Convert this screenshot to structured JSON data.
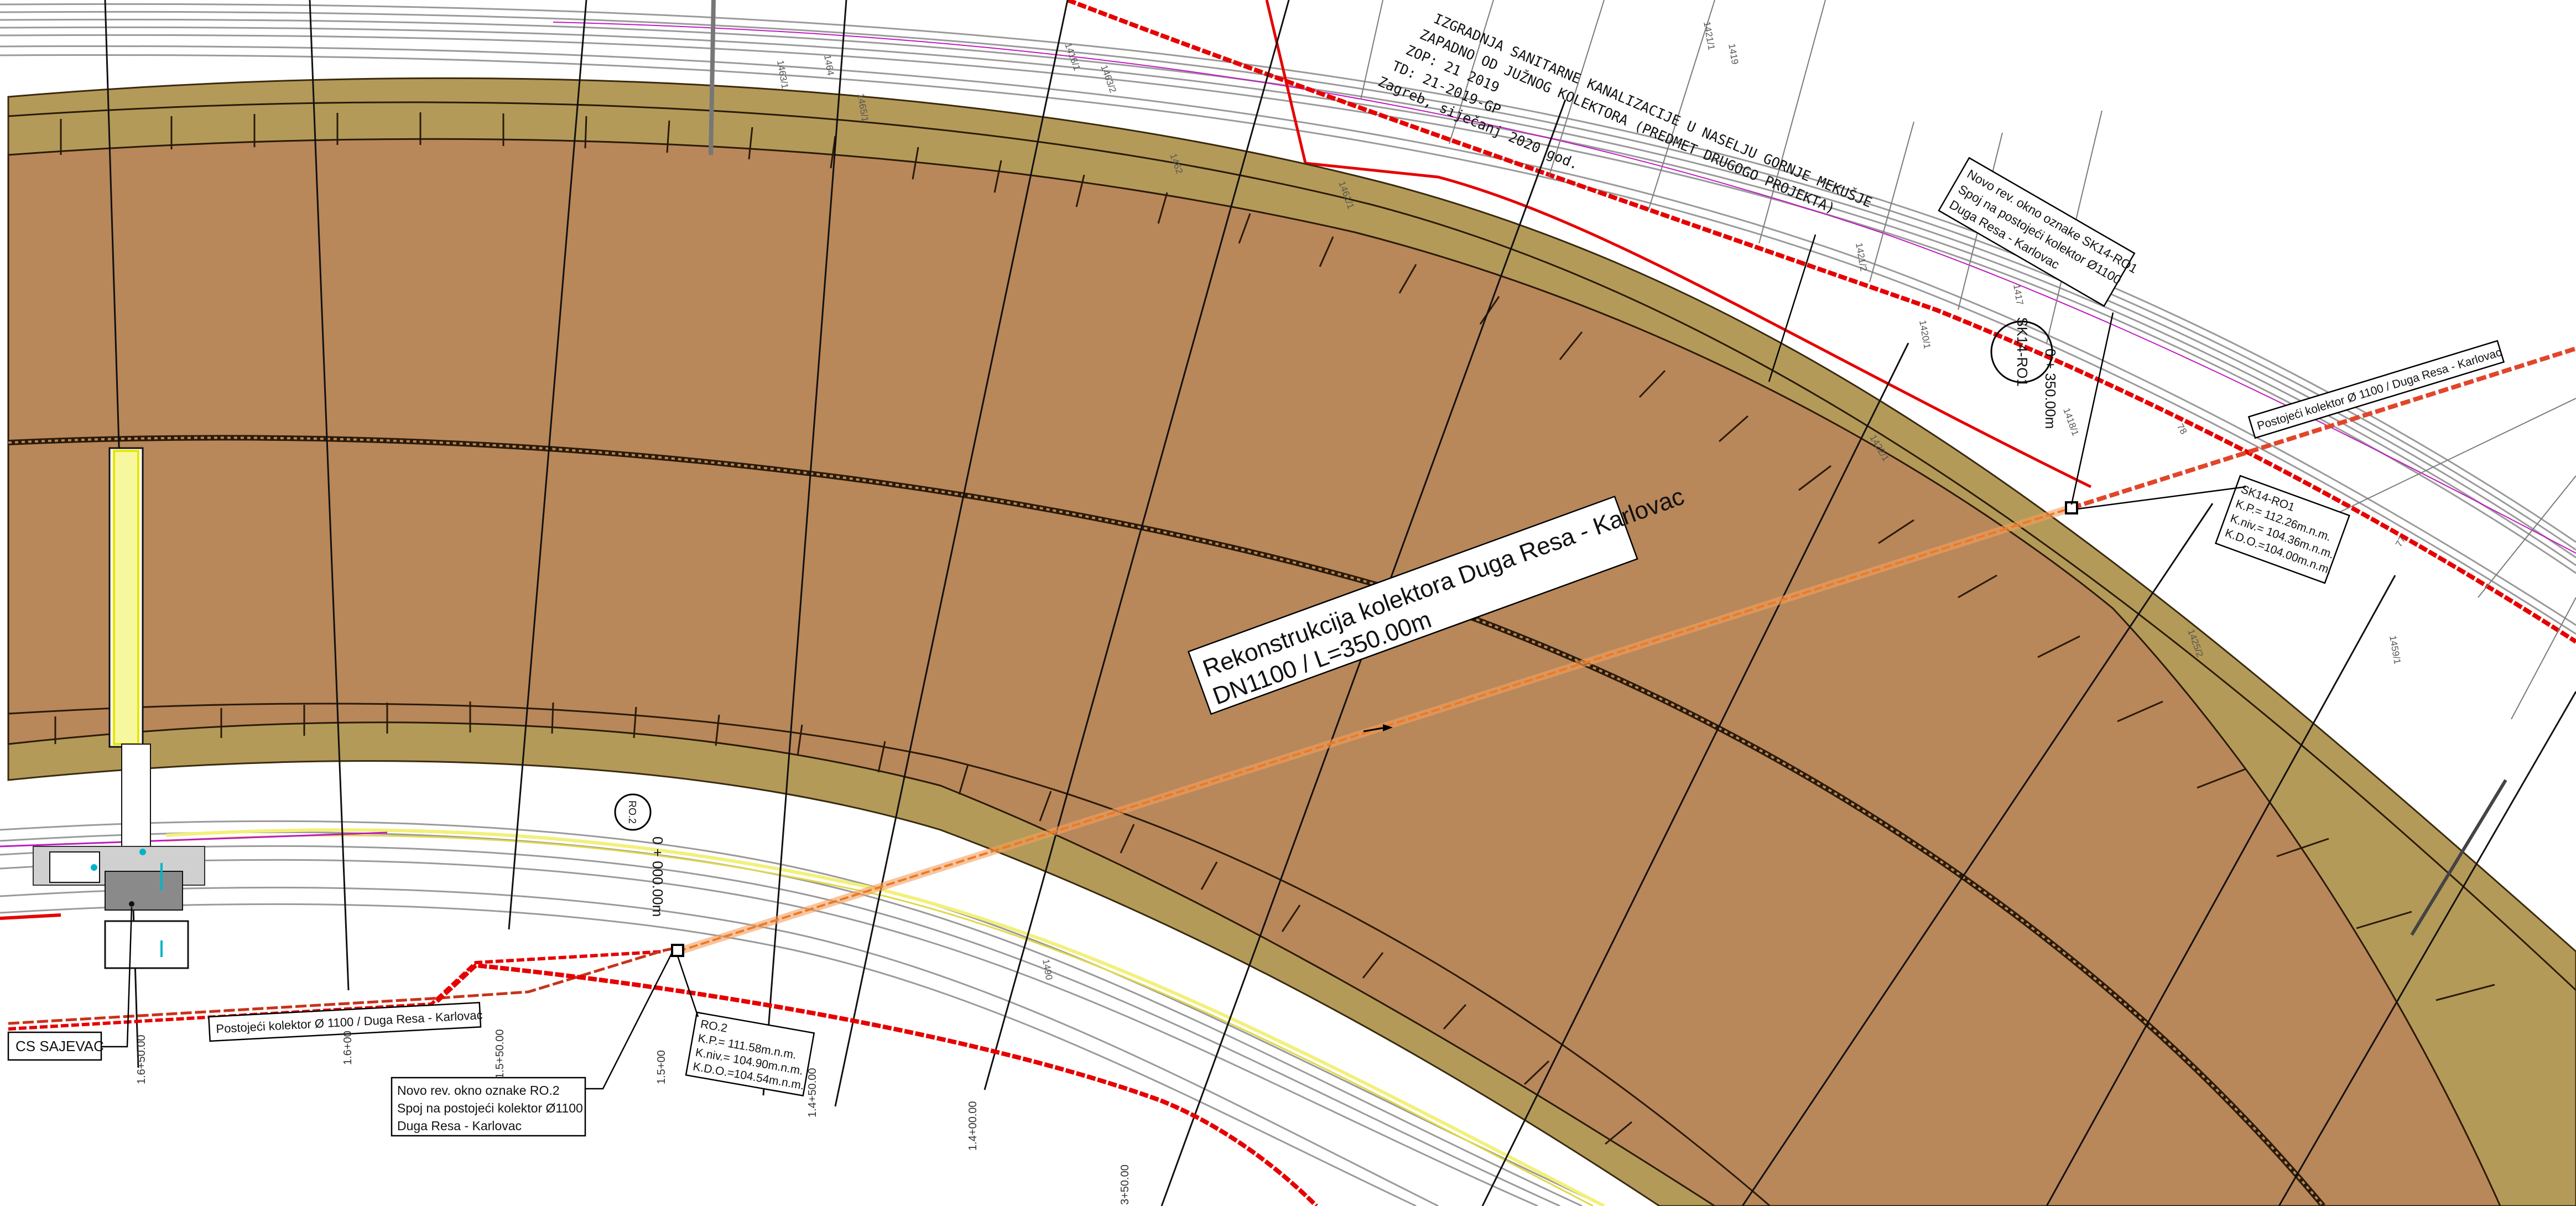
{
  "project_title": {
    "lines": [
      "IZGRADNJA SANITARNE KANALIZACIJE U NASELJU GORNJE MEKUŠJE",
      "ZAPADNO OD JUŽNOG KOLEKTORA (PREDMET DRUGOGO PROJEKTA)",
      "ZOP: 21 2019",
      "TD: 21-2019-GP",
      "Zagreb, siječanj 2020 god."
    ]
  },
  "main_label": {
    "line1": "Rekonstrukcija kolektora Duga Resa - Karlovac",
    "line2": "DN1100   /  L=350.00m"
  },
  "existing_collector": {
    "label_east": "Postojeći kolektor Ø 1100 / Duga Resa - Karlovac",
    "label_west": "Postojeći kolektor Ø 1100 / Duga Resa - Karlovac"
  },
  "shaft_sk14": {
    "note_lines": [
      "Novo rev. okno oznake SK14-RO1",
      "Spoj na postojeći kolektor Ø1100",
      "Duga Resa - Karlovac"
    ],
    "data_lines": [
      "SK14-RO1",
      "K.P.= 112.26m.n.m.",
      "K.niv.= 104.36m.n.m.",
      "K.D.O.=104.00m.n.m."
    ],
    "circle_label": "SK14-RO1",
    "station": "0 + 350.00m"
  },
  "shaft_ro2": {
    "note_lines": [
      "Novo rev. okno oznake RO.2",
      "Spoj na postojeći kolektor Ø1100",
      "Duga Resa - Karlovac"
    ],
    "data_lines": [
      "RO.2",
      "K.P.= 111.58m.n.m.",
      "K.niv.= 104.90m.n.m.",
      "K.D.O.=104.54m.n.m."
    ],
    "circle_label": "RO.2",
    "station": "0 + 000.00m"
  },
  "pump_station": {
    "label": "CS SAJEVAC"
  },
  "river_stations": [
    "1.6+50.00",
    "1.6+00",
    "1.5+50.00",
    "1.5+00",
    "1.4+50.00",
    "1.4+00.00",
    "3+50.00"
  ],
  "parcel_numbers": [
    "1463/1",
    "1464",
    "1465/1",
    "1463/2",
    "1421/1",
    "1421/2",
    "1422/1",
    "1420/1",
    "1418/1",
    "78",
    "77",
    "1419",
    "1416/1",
    "1462",
    "1461/1",
    "1459/1",
    "1417",
    "1490",
    "1425/2"
  ],
  "colors": {
    "embankment_fill": "#b49a58",
    "riverbed_fill": "#b8875a",
    "existing_collector": "#e2452a",
    "new_pipeline": "#ee7a22",
    "boundary_red": "#e60000",
    "rail_gray": "#9a9a9a",
    "road_yellow": "#f2f07a",
    "magenta_line": "#c01ac0",
    "cyan_symbols": "#00b4c8"
  }
}
